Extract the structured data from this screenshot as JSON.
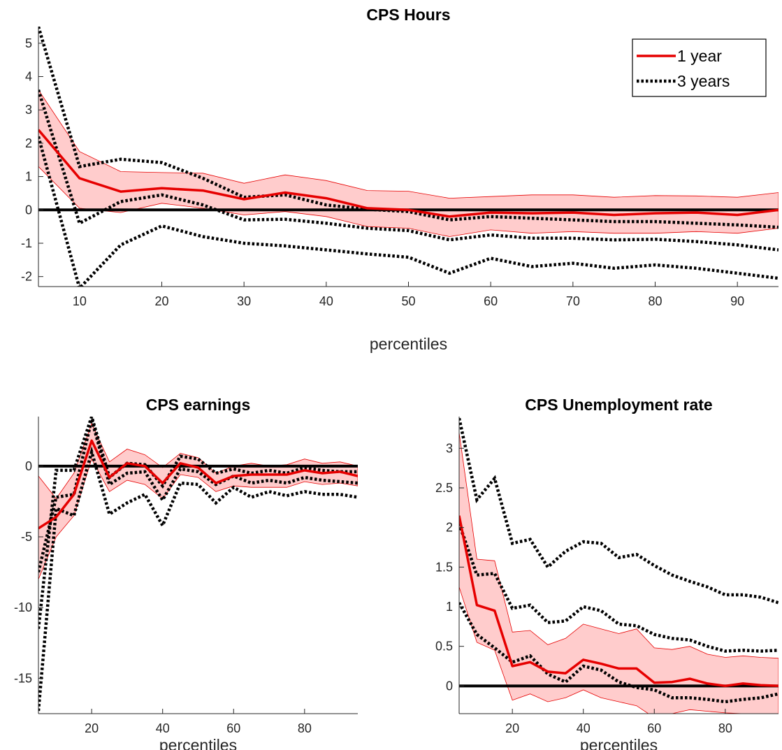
{
  "colors": {
    "one_year": "#e60000",
    "one_year_band": "#ffcccc",
    "three_year": "#000000",
    "zero_line": "#000000"
  },
  "chart_data": [
    {
      "type": "line",
      "title": "CPS Hours",
      "xlabel": "percentiles",
      "ylabel": "",
      "xlim": [
        5,
        95
      ],
      "ylim": [
        -2.3,
        5.5
      ],
      "xticks": [
        10,
        20,
        30,
        40,
        50,
        60,
        70,
        80,
        90
      ],
      "yticks": [
        -2,
        -1,
        0,
        1,
        2,
        3,
        4,
        5
      ],
      "ytick_labels": [
        "-2",
        "-1",
        "0",
        "1",
        "2",
        "3",
        "4",
        "5"
      ],
      "legend": {
        "position": "top-right",
        "entries": [
          "1 year",
          "3 years"
        ]
      },
      "x": [
        5,
        10,
        15,
        20,
        25,
        30,
        35,
        40,
        45,
        50,
        55,
        60,
        65,
        70,
        75,
        80,
        85,
        90,
        95
      ],
      "series": [
        {
          "name": "1 year",
          "style": "solid-red",
          "values": [
            2.4,
            0.95,
            0.55,
            0.65,
            0.58,
            0.32,
            0.52,
            0.35,
            0.05,
            0.0,
            -0.2,
            -0.08,
            -0.1,
            -0.08,
            -0.15,
            -0.1,
            -0.08,
            -0.15,
            0.0
          ]
        },
        {
          "name": "1 year band lower",
          "style": "band-low",
          "values": [
            1.3,
            0.05,
            -0.08,
            0.2,
            0.05,
            -0.15,
            -0.05,
            -0.2,
            -0.5,
            -0.55,
            -0.8,
            -0.6,
            -0.7,
            -0.65,
            -0.7,
            -0.7,
            -0.65,
            -0.7,
            -0.55
          ]
        },
        {
          "name": "1 year band upper",
          "style": "band-high",
          "values": [
            3.6,
            1.75,
            1.15,
            1.12,
            1.1,
            0.8,
            1.05,
            0.88,
            0.58,
            0.56,
            0.35,
            0.4,
            0.45,
            0.45,
            0.38,
            0.43,
            0.42,
            0.38,
            0.52
          ]
        },
        {
          "name": "3 years",
          "style": "dotted-black",
          "values": [
            3.6,
            -0.4,
            0.25,
            0.45,
            0.15,
            -0.3,
            -0.28,
            -0.4,
            -0.55,
            -0.62,
            -0.9,
            -0.75,
            -0.85,
            -0.85,
            -0.9,
            -0.88,
            -0.95,
            -1.05,
            -1.2
          ]
        },
        {
          "name": "3 years band lower",
          "style": "dotted-black",
          "values": [
            2.2,
            -2.35,
            -1.05,
            -0.48,
            -0.8,
            -1.0,
            -1.08,
            -1.2,
            -1.32,
            -1.42,
            -1.9,
            -1.45,
            -1.7,
            -1.6,
            -1.75,
            -1.65,
            -1.75,
            -1.9,
            -2.05
          ]
        },
        {
          "name": "3 years band upper",
          "style": "dotted-black",
          "values": [
            5.5,
            1.3,
            1.52,
            1.42,
            0.95,
            0.38,
            0.45,
            0.15,
            0.02,
            -0.05,
            -0.3,
            -0.2,
            -0.25,
            -0.3,
            -0.35,
            -0.35,
            -0.4,
            -0.45,
            -0.52
          ]
        }
      ],
      "reference_line": 0
    },
    {
      "type": "line",
      "title": "CPS earnings",
      "xlabel": "percentiles",
      "ylabel": "",
      "xlim": [
        5,
        95
      ],
      "ylim": [
        -17.5,
        3.5
      ],
      "xticks": [
        20,
        40,
        60,
        80
      ],
      "yticks": [
        -15,
        -10,
        -5,
        0
      ],
      "ytick_labels": [
        "-15",
        "-10",
        "-5",
        "0"
      ],
      "x": [
        5,
        10,
        15,
        20,
        25,
        30,
        35,
        40,
        45,
        50,
        55,
        60,
        65,
        70,
        75,
        80,
        85,
        90,
        95
      ],
      "series": [
        {
          "name": "1 year",
          "style": "solid-red",
          "values": [
            -4.4,
            -3.6,
            -2.0,
            1.8,
            -0.8,
            0.2,
            0.0,
            -1.2,
            0.2,
            -0.1,
            -1.2,
            -0.7,
            -0.6,
            -0.6,
            -0.6,
            -0.3,
            -0.5,
            -0.4,
            -0.7
          ]
        },
        {
          "name": "1 year band lower",
          "style": "band-low",
          "values": [
            -8.0,
            -5.0,
            -3.5,
            0.5,
            -1.8,
            -1.0,
            -1.3,
            -2.3,
            -0.6,
            -0.8,
            -1.8,
            -1.4,
            -1.5,
            -1.5,
            -1.5,
            -1.1,
            -1.3,
            -1.2,
            -1.4
          ]
        },
        {
          "name": "1 year band upper",
          "style": "band-high",
          "values": [
            -0.7,
            -2.3,
            -0.5,
            3.0,
            0.3,
            1.2,
            0.8,
            -0.1,
            0.9,
            0.6,
            -0.5,
            0.0,
            0.2,
            0.0,
            0.1,
            0.5,
            0.2,
            0.3,
            0.0
          ]
        },
        {
          "name": "3 years",
          "style": "dotted-black",
          "values": [
            -7.5,
            -2.2,
            -2.0,
            3.3,
            -1.3,
            -0.5,
            -0.4,
            -2.4,
            -0.2,
            -0.4,
            -1.3,
            -0.7,
            -1.2,
            -1.0,
            -1.2,
            -0.8,
            -1.0,
            -1.1,
            -1.2
          ]
        },
        {
          "name": "3 years band lower",
          "style": "dotted-black",
          "values": [
            -17.3,
            -3.0,
            -3.5,
            1.0,
            -3.4,
            -2.6,
            -2.0,
            -4.2,
            -1.2,
            -1.3,
            -2.6,
            -1.5,
            -2.2,
            -1.8,
            -2.1,
            -1.8,
            -2.0,
            -2.0,
            -2.2
          ]
        },
        {
          "name": "3 years band upper",
          "style": "dotted-black",
          "values": [
            -11.5,
            -0.3,
            -0.3,
            3.5,
            -0.8,
            0.2,
            0.1,
            -1.4,
            0.7,
            0.5,
            -0.5,
            -0.2,
            -0.5,
            -0.3,
            -0.5,
            -0.1,
            -0.3,
            -0.4,
            -0.4
          ]
        }
      ],
      "reference_line": 0
    },
    {
      "type": "line",
      "title": "CPS Unemployment rate",
      "xlabel": "percentiles",
      "ylabel": "",
      "xlim": [
        5,
        95
      ],
      "ylim": [
        -0.35,
        3.4
      ],
      "xticks": [
        20,
        40,
        60,
        80
      ],
      "yticks": [
        0,
        0.5,
        1,
        1.5,
        2,
        2.5,
        3
      ],
      "ytick_labels": [
        "0",
        "0.5",
        "1",
        "1.5",
        "2",
        "2.5",
        "3"
      ],
      "x": [
        5,
        10,
        15,
        20,
        25,
        30,
        35,
        40,
        45,
        50,
        55,
        60,
        65,
        70,
        75,
        80,
        85,
        90,
        95
      ],
      "series": [
        {
          "name": "1 year",
          "style": "solid-red",
          "values": [
            2.15,
            1.02,
            0.95,
            0.25,
            0.3,
            0.18,
            0.16,
            0.33,
            0.28,
            0.22,
            0.22,
            0.04,
            0.05,
            0.09,
            0.03,
            0.0,
            0.03,
            0.01,
            0.0
          ]
        },
        {
          "name": "1 year band lower",
          "style": "band-low",
          "values": [
            1.25,
            0.55,
            0.45,
            -0.18,
            -0.1,
            -0.2,
            -0.15,
            -0.05,
            -0.15,
            -0.2,
            -0.25,
            -0.4,
            -0.35,
            -0.3,
            -0.32,
            -0.34,
            -0.35,
            -0.35,
            -0.36
          ]
        },
        {
          "name": "1 year band upper",
          "style": "band-high",
          "values": [
            3.2,
            1.6,
            1.58,
            0.68,
            0.7,
            0.52,
            0.6,
            0.78,
            0.72,
            0.66,
            0.72,
            0.48,
            0.46,
            0.5,
            0.4,
            0.36,
            0.38,
            0.36,
            0.35
          ]
        },
        {
          "name": "3 years",
          "style": "dotted-black",
          "values": [
            2.05,
            1.4,
            1.42,
            0.98,
            1.02,
            0.8,
            0.82,
            1.0,
            0.95,
            0.78,
            0.76,
            0.65,
            0.6,
            0.58,
            0.5,
            0.44,
            0.45,
            0.44,
            0.45
          ]
        },
        {
          "name": "3 years band lower",
          "style": "dotted-black",
          "values": [
            1.05,
            0.65,
            0.48,
            0.3,
            0.38,
            0.15,
            0.05,
            0.25,
            0.2,
            0.05,
            -0.02,
            -0.05,
            -0.15,
            -0.15,
            -0.17,
            -0.2,
            -0.17,
            -0.15,
            -0.1
          ]
        },
        {
          "name": "3 years band upper",
          "style": "dotted-black",
          "values": [
            3.38,
            2.35,
            2.62,
            1.8,
            1.85,
            1.5,
            1.7,
            1.82,
            1.8,
            1.62,
            1.66,
            1.52,
            1.4,
            1.32,
            1.25,
            1.15,
            1.15,
            1.12,
            1.05
          ]
        }
      ],
      "reference_line": 0
    }
  ]
}
